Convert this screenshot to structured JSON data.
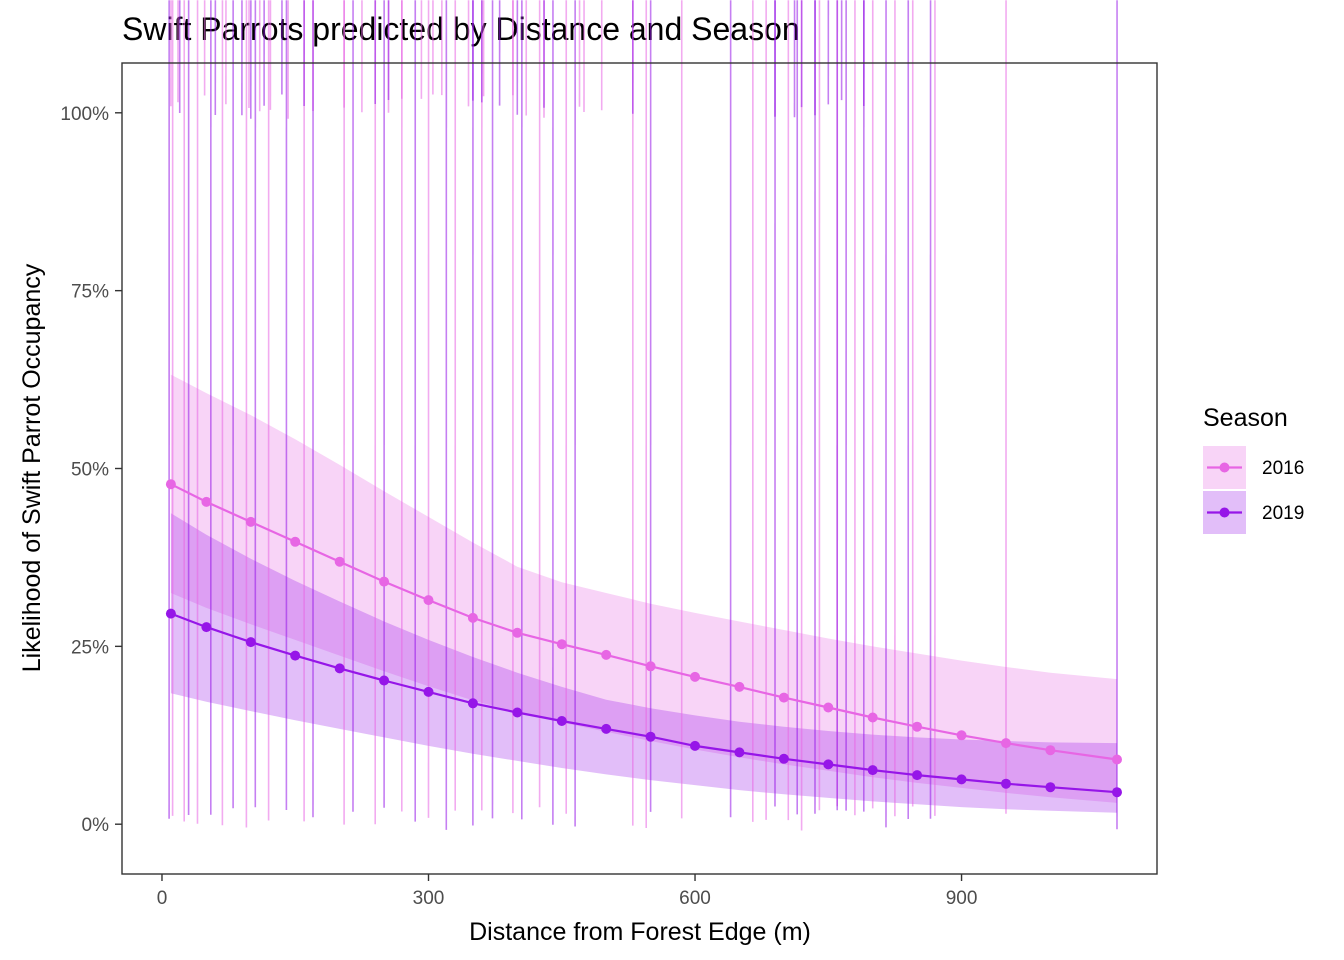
{
  "chart_data": {
    "type": "line",
    "title": "Swift Parrots predicted by Distance and Season",
    "xlabel": "Distance from Forest Edge (m)",
    "ylabel": "Likelihood of Swift Parrot Occupancy",
    "xlim": [
      -45,
      1120
    ],
    "ylim": [
      -0.07,
      1.07
    ],
    "xticks": [
      0,
      300,
      600,
      900
    ],
    "xtick_labels": [
      "0",
      "300",
      "600",
      "900"
    ],
    "yticks": [
      0,
      0.25,
      0.5,
      0.75,
      1.0
    ],
    "ytick_labels": [
      "0%",
      "25%",
      "50%",
      "75%",
      "100%"
    ],
    "grid": false,
    "legend": {
      "title": "Season",
      "position": "right"
    },
    "series": [
      {
        "name": "2016",
        "color": "#E766E4",
        "band_color": "#F8D6F7",
        "x": [
          10,
          50,
          100,
          150,
          200,
          250,
          300,
          350,
          400,
          450,
          500,
          550,
          600,
          650,
          700,
          750,
          800,
          850,
          900,
          950,
          1000,
          1075
        ],
        "y": [
          0.478,
          0.453,
          0.425,
          0.397,
          0.369,
          0.341,
          0.315,
          0.29,
          0.269,
          0.253,
          0.238,
          0.222,
          0.207,
          0.193,
          0.178,
          0.164,
          0.15,
          0.137,
          0.125,
          0.114,
          0.104,
          0.091
        ],
        "lower": [
          0.325,
          0.304,
          0.281,
          0.259,
          0.237,
          0.215,
          0.194,
          0.174,
          0.157,
          0.143,
          0.13,
          0.117,
          0.105,
          0.094,
          0.084,
          0.075,
          0.066,
          0.058,
          0.051,
          0.044,
          0.038,
          0.03
        ],
        "upper": [
          0.632,
          0.606,
          0.575,
          0.541,
          0.505,
          0.468,
          0.432,
          0.396,
          0.362,
          0.34,
          0.325,
          0.31,
          0.297,
          0.285,
          0.273,
          0.261,
          0.25,
          0.24,
          0.23,
          0.221,
          0.213,
          0.204
        ],
        "observations_present": [
          10,
          18,
          48,
          72,
          98,
          110,
          122,
          142,
          170,
          205,
          225,
          255,
          270,
          292,
          305,
          315,
          345,
          362,
          395,
          410,
          430,
          470,
          475,
          495
        ],
        "observations_absent": [
          12,
          25,
          40,
          68,
          95,
          120,
          160,
          205,
          240,
          270,
          300,
          330,
          360,
          395,
          425,
          455,
          530,
          545,
          585,
          665,
          680,
          705,
          720,
          740,
          760,
          780,
          800,
          825,
          845,
          870,
          950
        ]
      },
      {
        "name": "2019",
        "color": "#9616E8",
        "band_color": "#DFC0F7",
        "x": [
          10,
          50,
          100,
          150,
          200,
          250,
          300,
          350,
          400,
          450,
          500,
          550,
          600,
          650,
          700,
          750,
          800,
          850,
          900,
          950,
          1000,
          1075
        ],
        "y": [
          0.296,
          0.277,
          0.256,
          0.237,
          0.219,
          0.202,
          0.186,
          0.17,
          0.157,
          0.145,
          0.134,
          0.123,
          0.11,
          0.101,
          0.092,
          0.084,
          0.076,
          0.069,
          0.063,
          0.057,
          0.052,
          0.045
        ],
        "lower": [
          0.184,
          0.172,
          0.159,
          0.146,
          0.134,
          0.122,
          0.11,
          0.099,
          0.089,
          0.079,
          0.07,
          0.062,
          0.055,
          0.048,
          0.042,
          0.037,
          0.032,
          0.028,
          0.024,
          0.021,
          0.019,
          0.016
        ],
        "upper": [
          0.437,
          0.407,
          0.373,
          0.342,
          0.313,
          0.285,
          0.259,
          0.235,
          0.213,
          0.193,
          0.175,
          0.163,
          0.153,
          0.144,
          0.137,
          0.131,
          0.126,
          0.122,
          0.119,
          0.117,
          0.115,
          0.114
        ],
        "observations_present": [
          20,
          60,
          90,
          100,
          115,
          135,
          160,
          240,
          255,
          350,
          360,
          380,
          400,
          430,
          530,
          690,
          712,
          720,
          735,
          750,
          765,
          790
        ],
        "observations_absent": [
          8,
          30,
          55,
          80,
          105,
          140,
          170,
          215,
          250,
          285,
          320,
          350,
          372,
          405,
          440,
          465,
          550,
          640,
          690,
          715,
          735,
          760,
          770,
          790,
          815,
          840,
          865,
          1075
        ]
      }
    ]
  }
}
